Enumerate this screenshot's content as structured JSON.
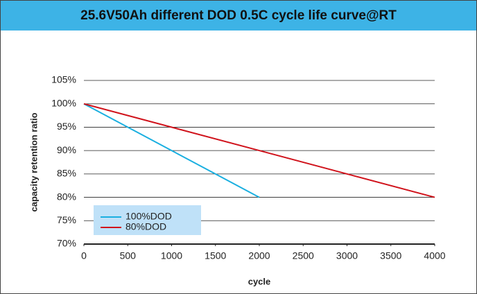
{
  "chart_data": {
    "type": "line",
    "title": "25.6V50Ah different DOD 0.5C cycle life curve@RT",
    "xlabel": "cycle",
    "ylabel": "capacity retention ratio",
    "series": [
      {
        "name": "100%DOD",
        "color": "#1aafe0",
        "x": [
          0,
          2000
        ],
        "values": [
          100,
          80
        ]
      },
      {
        "name": "80%DOD",
        "color": "#d0121b",
        "x": [
          0,
          4000
        ],
        "values": [
          100,
          80
        ]
      }
    ],
    "xlim": [
      0,
      4000
    ],
    "xticks": [
      0,
      500,
      1000,
      1500,
      2000,
      2500,
      3000,
      3500,
      4000
    ],
    "ylim": [
      70,
      105
    ],
    "yticks": [
      {
        "value": 70,
        "label": "70%"
      },
      {
        "value": 75,
        "label": "75%"
      },
      {
        "value": 80,
        "label": "80%"
      },
      {
        "value": 85,
        "label": "85%"
      },
      {
        "value": 90,
        "label": "90%"
      },
      {
        "value": 95,
        "label": "95%"
      },
      {
        "value": 100,
        "label": "100%"
      },
      {
        "value": 105,
        "label": "105%"
      }
    ],
    "grid": true
  }
}
